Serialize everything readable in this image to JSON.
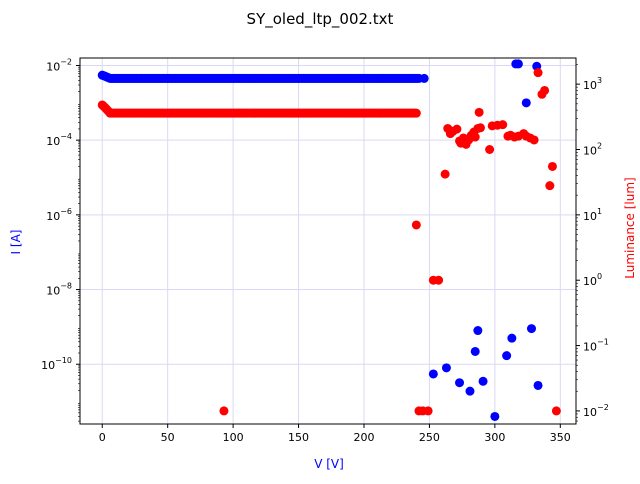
{
  "chart_data": {
    "type": "scatter",
    "title": "SY_oled_ltp_002.txt",
    "xlabel": "V [V]",
    "ylabel_left": "I [A]",
    "ylabel_right": "Luminance [lum]",
    "x_range": [
      -17,
      362
    ],
    "y_left_range_log10": [
      -11.6,
      -1.8
    ],
    "y_right_range_log10": [
      -2.2,
      3.4
    ],
    "x_ticks": [
      0,
      50,
      100,
      150,
      200,
      250,
      300,
      350
    ],
    "x_tick_labels": [
      "0",
      "50",
      "100",
      "150",
      "200",
      "250",
      "300",
      "350"
    ],
    "y_left_ticks_exp": [
      -10,
      -8,
      -6,
      -4,
      -2
    ],
    "y_left_tick_labels": [
      {
        "base": "10",
        "exp": "−10"
      },
      {
        "base": "10",
        "exp": "−8"
      },
      {
        "base": "10",
        "exp": "−6"
      },
      {
        "base": "10",
        "exp": "−4"
      },
      {
        "base": "10",
        "exp": "−2"
      }
    ],
    "y_right_ticks_exp": [
      -2,
      -1,
      0,
      1,
      2,
      3
    ],
    "y_right_tick_labels": [
      {
        "base": "10",
        "exp": "−2"
      },
      {
        "base": "10",
        "exp": "−1"
      },
      {
        "base": "10",
        "exp": "0"
      },
      {
        "base": "10",
        "exp": "1"
      },
      {
        "base": "10",
        "exp": "2"
      },
      {
        "base": "10",
        "exp": "3"
      }
    ],
    "grid": true,
    "colors": {
      "current": "#0000ff",
      "luminance": "#ff0000",
      "grid": "#d9d9f5"
    },
    "series": [
      {
        "axis": "left",
        "color": "#0000ff",
        "band": {
          "x_start": 0,
          "x_end": 242,
          "x_step": 1,
          "y_start": 0.0055,
          "y_plateau": 0.0045
        },
        "points": [
          [
            246,
            0.0045
          ],
          [
            253,
            5.5e-11
          ],
          [
            263,
            8e-11
          ],
          [
            273,
            3.2e-11
          ],
          [
            281,
            1.9e-11
          ],
          [
            285,
            2.2e-10
          ],
          [
            287,
            8e-10
          ],
          [
            291,
            3.5e-11
          ],
          [
            300,
            4e-12
          ],
          [
            309,
            1.7e-10
          ],
          [
            313,
            5e-10
          ],
          [
            316,
            0.011
          ],
          [
            318,
            0.011
          ],
          [
            324,
            0.001
          ],
          [
            328,
            9e-10
          ],
          [
            332,
            0.0095
          ],
          [
            333,
            2.7e-11
          ]
        ]
      },
      {
        "axis": "right",
        "color": "#ff0000",
        "band": {
          "x_start": 0,
          "x_end": 240,
          "x_step": 1,
          "y_start": 480,
          "y_plateau": 360
        },
        "points": [
          [
            93,
            0.01
          ],
          [
            240,
            7.0
          ],
          [
            242,
            0.01
          ],
          [
            245,
            0.01
          ],
          [
            249,
            0.01
          ],
          [
            253,
            1.0
          ],
          [
            257,
            1.0
          ],
          [
            262,
            42
          ],
          [
            264,
            210
          ],
          [
            266,
            175
          ],
          [
            268,
            190
          ],
          [
            271,
            205
          ],
          [
            273,
            135
          ],
          [
            274,
            125
          ],
          [
            276,
            150
          ],
          [
            278,
            120
          ],
          [
            280,
            140
          ],
          [
            282,
            165
          ],
          [
            284,
            185
          ],
          [
            285,
            155
          ],
          [
            287,
            210
          ],
          [
            288,
            370
          ],
          [
            289,
            215
          ],
          [
            296,
            100
          ],
          [
            298,
            230
          ],
          [
            302,
            235
          ],
          [
            306,
            240
          ],
          [
            310,
            160
          ],
          [
            312,
            165
          ],
          [
            315,
            155
          ],
          [
            318,
            160
          ],
          [
            322,
            175
          ],
          [
            324,
            160
          ],
          [
            327,
            150
          ],
          [
            330,
            140
          ],
          [
            333,
            1500
          ],
          [
            336,
            700
          ],
          [
            338,
            800
          ],
          [
            342,
            28
          ],
          [
            344,
            55
          ],
          [
            347,
            0.01
          ]
        ]
      }
    ]
  }
}
